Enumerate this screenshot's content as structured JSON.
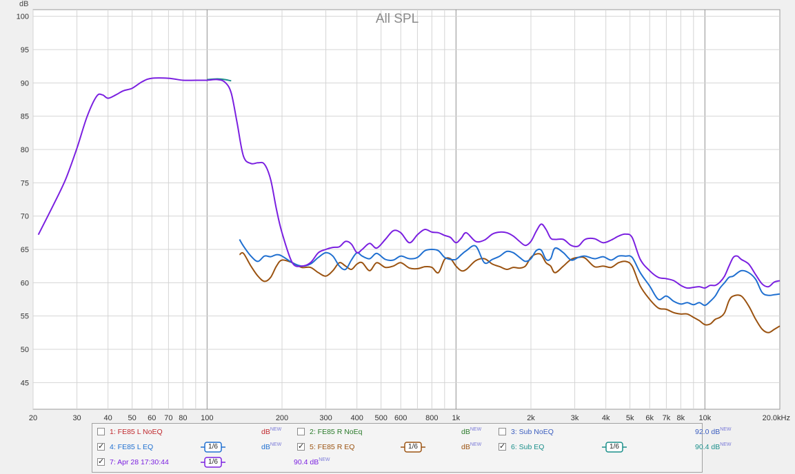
{
  "chart_data": {
    "type": "line",
    "title": "All SPL",
    "ylabel": "dB",
    "xunit": "kHz",
    "xscale": "log",
    "xlim": [
      20,
      20000
    ],
    "ylim": [
      41,
      101
    ],
    "grid": true,
    "y_ticks": [
      "100",
      "95",
      "90",
      "85",
      "80",
      "75",
      "70",
      "65",
      "60",
      "55",
      "50",
      "45"
    ],
    "x_ticks": [
      "20",
      "30",
      "40",
      "50",
      "60",
      "70",
      "80",
      "100",
      "200",
      "300",
      "400",
      "500",
      "600",
      "800",
      "1k",
      "2k",
      "3k",
      "4k",
      "5k",
      "6k",
      "7k",
      "8k",
      "10k",
      "20.0kHz"
    ],
    "series": [
      {
        "name": "7: Apr 28 17:30:44",
        "color": "#7a1fe0",
        "x": [
          21,
          24,
          27,
          30,
          33,
          36,
          38,
          40,
          43,
          46,
          50,
          55,
          60,
          70,
          80,
          90,
          100,
          110,
          118,
          125,
          132,
          140,
          150,
          160,
          170,
          180,
          190,
          200,
          220,
          240,
          260,
          280,
          300,
          320,
          340,
          360,
          380,
          400,
          420,
          450,
          480,
          520,
          560,
          600,
          650,
          700,
          750,
          800,
          850,
          900,
          950,
          1000,
          1050,
          1100,
          1200,
          1300,
          1400,
          1500,
          1600,
          1700,
          1800,
          1900,
          2000,
          2100,
          2200,
          2300,
          2400,
          2500,
          2700,
          2900,
          3100,
          3300,
          3600,
          3900,
          4200,
          4500,
          4800,
          5100,
          5500,
          6000,
          6500,
          7000,
          7500,
          8000,
          8500,
          9000,
          9500,
          10000,
          10500,
          11000,
          11500,
          12000,
          12500,
          13000,
          13500,
          14000,
          15000,
          16000,
          17000,
          18000,
          19000,
          20000
        ],
        "y": [
          67.2,
          71.5,
          75.5,
          80.2,
          85,
          88,
          88.2,
          87.7,
          88.2,
          88.8,
          89.2,
          90.2,
          90.7,
          90.7,
          90.4,
          90.4,
          90.4,
          90.5,
          90.1,
          88.5,
          84,
          79,
          77.9,
          78,
          77.8,
          75.5,
          71,
          67.5,
          63,
          62.5,
          63,
          64.5,
          65,
          65.3,
          65.4,
          66.2,
          65.8,
          64.5,
          65,
          65.9,
          65.2,
          66.5,
          67.8,
          67.5,
          66,
          67.2,
          68,
          67.6,
          67.5,
          67.1,
          66.8,
          66,
          66.7,
          67.5,
          66.2,
          66.4,
          67.3,
          67.6,
          67.5,
          67,
          66.2,
          65.6,
          66.2,
          67.7,
          68.8,
          68,
          66.7,
          66.5,
          66.5,
          65.6,
          65.5,
          66.5,
          66.6,
          66,
          66.4,
          67,
          67.3,
          66.8,
          63.5,
          61.8,
          60.8,
          60.6,
          60.3,
          59.6,
          59.2,
          59.3,
          59.4,
          59.2,
          59.6,
          59.6,
          60.1,
          61,
          62.5,
          63.8,
          64,
          63.5,
          62.8,
          61.2,
          59.8,
          59.4,
          60.1,
          60.3
        ]
      },
      {
        "name": "6: Sub EQ",
        "color": "#1a8f8a",
        "x": [
          100,
          110,
          118,
          125
        ],
        "y": [
          90.5,
          90.6,
          90.5,
          90.3
        ]
      },
      {
        "name": "4: FE85 L EQ",
        "color": "#1f6fd0",
        "x": [
          135,
          140,
          150,
          160,
          170,
          180,
          190,
          200,
          220,
          240,
          260,
          280,
          300,
          320,
          340,
          360,
          380,
          400,
          420,
          450,
          480,
          520,
          560,
          600,
          650,
          700,
          750,
          800,
          850,
          900,
          950,
          1000,
          1050,
          1100,
          1200,
          1300,
          1400,
          1500,
          1600,
          1700,
          1800,
          1900,
          2000,
          2100,
          2200,
          2300,
          2400,
          2500,
          2700,
          2900,
          3100,
          3300,
          3600,
          3900,
          4200,
          4500,
          4800,
          5100,
          5500,
          6000,
          6500,
          7000,
          7500,
          8000,
          8500,
          9000,
          9500,
          10000,
          10500,
          11000,
          11500,
          12000,
          12500,
          13000,
          14000,
          15000,
          16000,
          17000,
          18000,
          19000,
          20000
        ],
        "y": [
          66.5,
          65.5,
          64,
          63.2,
          64,
          63.9,
          64.2,
          64,
          63,
          62.5,
          62.8,
          63.8,
          64.5,
          64,
          62.5,
          62,
          63.4,
          64.5,
          64,
          63.6,
          64.4,
          63.5,
          63.4,
          64,
          63.6,
          63.8,
          64.8,
          65,
          64.8,
          63.8,
          63.5,
          63.5,
          64.2,
          64.8,
          65.5,
          63,
          63.5,
          64,
          64.7,
          64.5,
          63.8,
          63.2,
          63.6,
          64.8,
          64.9,
          63.5,
          63.6,
          65.2,
          64.5,
          63.4,
          63.8,
          64,
          63.6,
          63.9,
          63.4,
          64,
          64,
          63.8,
          61.5,
          59.5,
          57.5,
          58,
          57.2,
          56.8,
          57,
          56.7,
          57,
          56.6,
          57.2,
          58,
          59.2,
          60,
          60.8,
          61,
          61.8,
          61.5,
          60.5,
          58.5,
          58.1,
          58.2,
          58.3
        ]
      },
      {
        "name": "5: FE85 R EQ",
        "color": "#9a5210",
        "x": [
          135,
          140,
          150,
          160,
          170,
          180,
          190,
          200,
          220,
          240,
          260,
          280,
          300,
          320,
          340,
          360,
          380,
          400,
          420,
          450,
          480,
          520,
          560,
          600,
          650,
          700,
          750,
          800,
          850,
          900,
          950,
          1000,
          1050,
          1100,
          1200,
          1300,
          1400,
          1500,
          1600,
          1700,
          1800,
          1900,
          2000,
          2100,
          2200,
          2300,
          2400,
          2500,
          2700,
          2900,
          3100,
          3300,
          3600,
          3900,
          4200,
          4500,
          4800,
          5100,
          5500,
          6000,
          6500,
          7000,
          7500,
          8000,
          8500,
          9000,
          9500,
          10000,
          10500,
          11000,
          11500,
          12000,
          12500,
          13000,
          14000,
          15000,
          16000,
          17000,
          18000,
          19000,
          20000
        ],
        "y": [
          64.2,
          64.4,
          62.5,
          61,
          60.2,
          60.8,
          62.5,
          63.4,
          63,
          62.3,
          62.3,
          61.5,
          61,
          61.8,
          63,
          62.5,
          62,
          62.8,
          63,
          61.8,
          63,
          62.3,
          62.5,
          63,
          62.2,
          62.1,
          62.4,
          62.3,
          61.5,
          63.5,
          63.6,
          62.5,
          61.8,
          62,
          63.3,
          63.6,
          62.8,
          62.4,
          62,
          62.3,
          62.2,
          62.5,
          63.8,
          64.3,
          64.2,
          63,
          62.5,
          61.5,
          62.5,
          63.5,
          63.8,
          63.7,
          62.4,
          62.5,
          62.3,
          63,
          63.2,
          62.5,
          59.5,
          57.5,
          56.2,
          56,
          55.5,
          55.3,
          55.3,
          54.8,
          54.3,
          53.7,
          53.8,
          54.5,
          54.8,
          55.5,
          57.3,
          58,
          58,
          56.5,
          54.5,
          53,
          52.5,
          53,
          53.5
        ]
      }
    ]
  },
  "legend": {
    "items": [
      {
        "label": "1: FE85 L NoEQ",
        "checked": false,
        "color": "#c0282d",
        "unit": "dB",
        "value": "",
        "smoothing": ""
      },
      {
        "label": "2: FE85 R NoEq",
        "checked": false,
        "color": "#2a7a2a",
        "unit": "dB",
        "value": "",
        "smoothing": ""
      },
      {
        "label": "3: Sub NoEQ",
        "checked": false,
        "color": "#3b5dbf",
        "unit": "dB",
        "value": "92.0",
        "smoothing": ""
      },
      {
        "label": "4: FE85 L EQ",
        "checked": true,
        "color": "#1f6fd0",
        "unit": "dB",
        "value": "",
        "smoothing": "1/6"
      },
      {
        "label": "5: FE85 R EQ",
        "checked": true,
        "color": "#9a5210",
        "unit": "dB",
        "value": "",
        "smoothing": "1/6"
      },
      {
        "label": "6: Sub EQ",
        "checked": true,
        "color": "#1a8f8a",
        "unit": "dB",
        "value": "90.4",
        "smoothing": "1/6"
      },
      {
        "label": "7: Apr 28 17:30:44",
        "checked": true,
        "color": "#7a1fe0",
        "unit": "dB",
        "value": "90.4",
        "smoothing": "1/6"
      }
    ],
    "new_badge": "NEW",
    "check_mark": "✓"
  }
}
